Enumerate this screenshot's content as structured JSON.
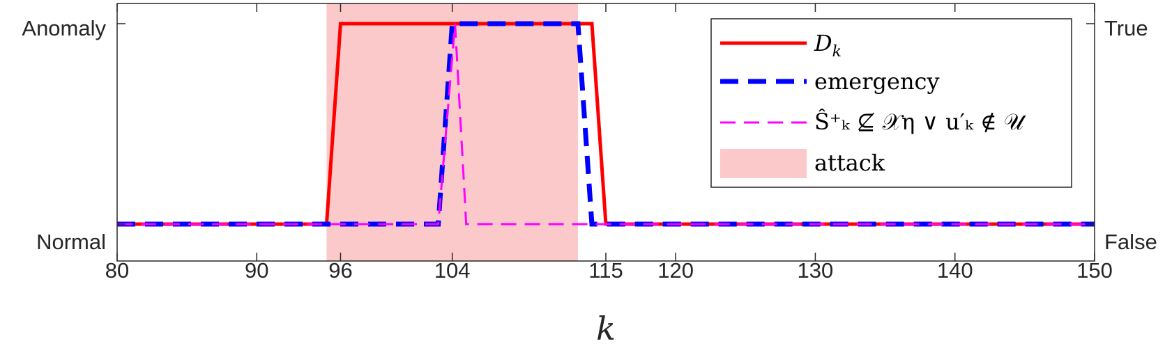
{
  "chart_data": {
    "type": "line",
    "x": [
      80,
      95,
      96,
      103,
      104,
      104.5,
      105,
      113,
      114,
      115,
      150
    ],
    "xlim": [
      80,
      150
    ],
    "xticks": [
      80,
      90,
      96,
      104,
      115,
      120,
      130,
      140,
      150
    ],
    "xlabel": "k",
    "ylim": [
      -0.1,
      1.1
    ],
    "left_ytick_labels": {
      "0": "Normal",
      "1": "Anomaly"
    },
    "right_ytick_labels": {
      "0": "False",
      "1": "True"
    },
    "attack_interval": [
      95,
      113
    ],
    "series": [
      {
        "name": "D_k",
        "color": "#ff0000",
        "style": "solid",
        "points": [
          [
            80,
            0
          ],
          [
            95,
            0
          ],
          [
            96,
            1
          ],
          [
            114,
            1
          ],
          [
            115,
            0
          ],
          [
            150,
            0
          ]
        ]
      },
      {
        "name": "emergency",
        "color": "#0000ff",
        "style": "dashed",
        "points": [
          [
            80,
            0
          ],
          [
            103,
            0
          ],
          [
            104,
            1
          ],
          [
            113,
            1
          ],
          [
            114,
            0
          ],
          [
            150,
            0
          ]
        ]
      },
      {
        "name": "S_hat_k_plus_not_subset_X_eta_or_u_prime_k_not_in_U",
        "color": "#ff00ff",
        "style": "dashed-thin",
        "points": [
          [
            80,
            0
          ],
          [
            103,
            0
          ],
          [
            104.2,
            1
          ],
          [
            105,
            0
          ],
          [
            150,
            0
          ]
        ]
      }
    ],
    "legend": {
      "position": "top-right",
      "entries": [
        {
          "label": "D",
          "sub": "k",
          "color": "#ff0000",
          "style": "solid"
        },
        {
          "label": "emergency",
          "color": "#0000ff",
          "style": "dashed"
        },
        {
          "label": "Ŝ⁺ₖ ⊈ 𝒳η ∨ u′ₖ ∉ 𝒰",
          "color": "#ff00ff",
          "style": "dashed-thin"
        },
        {
          "label": "attack",
          "color": "#fbc9c9",
          "style": "patch"
        }
      ]
    },
    "grid": false
  }
}
